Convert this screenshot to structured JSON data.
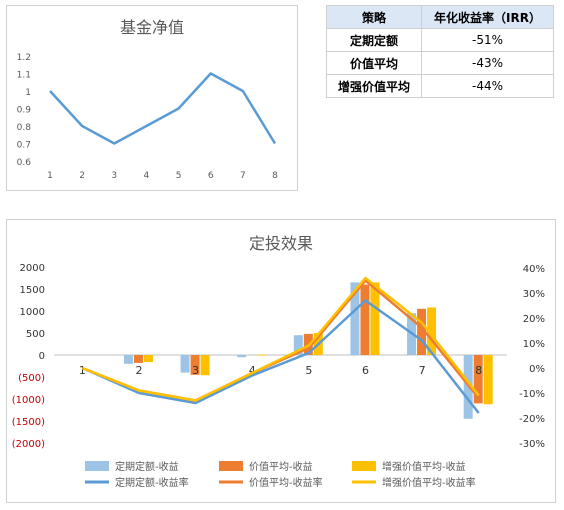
{
  "nav_chart": {
    "title": "基金净值",
    "chart_data": {
      "type": "line",
      "title": "基金净值",
      "x": [
        1,
        2,
        3,
        4,
        5,
        6,
        7,
        8
      ],
      "series": [
        {
          "values": [
            1.0,
            0.8,
            0.7,
            0.8,
            0.9,
            1.1,
            1.0,
            0.7
          ]
        }
      ],
      "ylim": [
        0.6,
        1.2
      ],
      "yticks": [
        "0.6",
        "0.7",
        "0.8",
        "0.9",
        "1",
        "1.1",
        "1.2"
      ],
      "xticks": [
        "1",
        "2",
        "3",
        "4",
        "5",
        "6",
        "7",
        "8"
      ],
      "grid": false,
      "color": "#5b9bd5"
    }
  },
  "irr_table": {
    "headers": [
      "策略",
      "年化收益率（IRR）"
    ],
    "rows": [
      {
        "strategy": "定期定额",
        "irr": "-51%"
      },
      {
        "strategy": "价值平均",
        "irr": "-43%"
      },
      {
        "strategy": "增强价值平均",
        "irr": "-44%"
      }
    ],
    "header_color": "#dbe7f5"
  },
  "effect_chart": {
    "title": "定投效果",
    "chart_data": {
      "type": "bar",
      "title": "定投效果",
      "categories": [
        "1",
        "2",
        "3",
        "4",
        "5",
        "6",
        "7",
        "8"
      ],
      "bar_series": [
        {
          "name": "定期定额-收益",
          "color": "#9dc3e6",
          "values": [
            0,
            -200,
            -400,
            -50,
            450,
            1650,
            950,
            -1450
          ]
        },
        {
          "name": "价值平均-收益",
          "color": "#ed7d31",
          "values": [
            0,
            -180,
            -450,
            0,
            480,
            1600,
            1050,
            -1100
          ]
        },
        {
          "name": "增强价值平均-收益",
          "color": "#ffc000",
          "values": [
            0,
            -160,
            -460,
            10,
            500,
            1650,
            1080,
            -1120
          ]
        }
      ],
      "line_series": [
        {
          "name": "定期定额-收益率",
          "color": "#5b9bd5",
          "values": [
            0,
            -10,
            -14,
            -3,
            6,
            27,
            11,
            -18
          ]
        },
        {
          "name": "价值平均-收益率",
          "color": "#ed7d31",
          "values": [
            0,
            -9,
            -13,
            -2,
            8,
            35,
            16,
            -12
          ]
        },
        {
          "name": "增强价值平均-收益率",
          "color": "#ffc000",
          "values": [
            0,
            -9,
            -13,
            -2,
            9,
            36,
            18,
            -11
          ]
        }
      ],
      "ylim_left": [
        -2000,
        2000
      ],
      "ylim_right": [
        -30,
        40
      ],
      "left_ticks": [
        "2000",
        "1500",
        "1000",
        "500",
        "0",
        "(500)",
        "(1000)",
        "(1500)",
        "(2000)"
      ],
      "right_ticks": [
        "40%",
        "30%",
        "20%",
        "10%",
        "0%",
        "-10%",
        "-20%",
        "-30%"
      ],
      "negative_label_color": "#c00000",
      "legend": "bottom"
    }
  }
}
